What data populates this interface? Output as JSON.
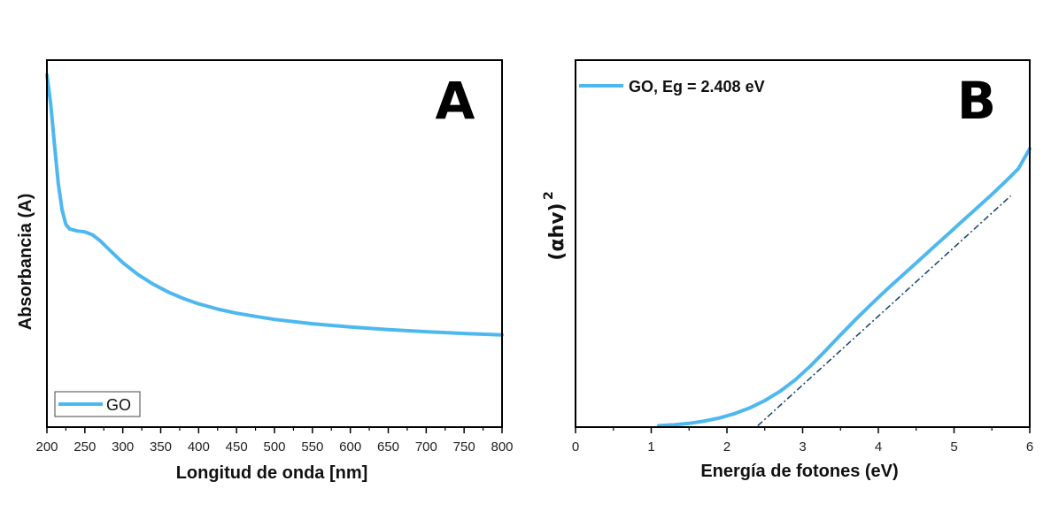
{
  "chart_data": [
    {
      "type": "line",
      "panel_label": "A",
      "xlabel": "Longitud de onda [nm]",
      "ylabel": "Absorbancia (A)",
      "xlim": [
        200,
        800
      ],
      "x_ticks": [
        "200",
        "250",
        "300",
        "350",
        "400",
        "450",
        "500",
        "550",
        "600",
        "650",
        "700",
        "750",
        "800"
      ],
      "y_ticks_shown": false,
      "grid": false,
      "legend_position": "bottom-left",
      "color": "#4db8f0",
      "series": [
        {
          "name": "GO",
          "x": [
            200,
            205,
            210,
            215,
            220,
            225,
            230,
            240,
            250,
            260,
            270,
            280,
            290,
            300,
            320,
            340,
            360,
            380,
            400,
            425,
            450,
            475,
            500,
            550,
            600,
            650,
            700,
            750,
            800
          ],
          "y": [
            1.0,
            0.9,
            0.76,
            0.63,
            0.54,
            0.49,
            0.475,
            0.468,
            0.465,
            0.455,
            0.435,
            0.41,
            0.385,
            0.36,
            0.32,
            0.287,
            0.26,
            0.238,
            0.22,
            0.202,
            0.188,
            0.177,
            0.167,
            0.152,
            0.141,
            0.132,
            0.125,
            0.119,
            0.114
          ]
        }
      ]
    },
    {
      "type": "line",
      "panel_label": "B",
      "xlabel": "Energía de fotones (eV)",
      "ylabel_main": "(αhv)",
      "ylabel_sup": "2",
      "xlim": [
        0,
        6
      ],
      "x_ticks": [
        "0",
        "1",
        "2",
        "3",
        "4",
        "5",
        "6"
      ],
      "y_ticks_shown": false,
      "grid": false,
      "legend_position": "top-left",
      "color": "#4db8f0",
      "fit_color": "#1e4a6e",
      "series": [
        {
          "name": "GO, Eg = 2.408 eV",
          "x": [
            1.1,
            1.3,
            1.5,
            1.7,
            1.9,
            2.1,
            2.3,
            2.5,
            2.7,
            2.9,
            3.1,
            3.3,
            3.5,
            3.7,
            3.9,
            4.1,
            4.3,
            4.5,
            4.7,
            4.9,
            5.1,
            5.3,
            5.5,
            5.7,
            5.85,
            6.0
          ],
          "y": [
            0.0,
            0.003,
            0.008,
            0.016,
            0.027,
            0.042,
            0.062,
            0.088,
            0.12,
            0.16,
            0.208,
            0.262,
            0.318,
            0.372,
            0.424,
            0.474,
            0.522,
            0.57,
            0.618,
            0.666,
            0.714,
            0.762,
            0.81,
            0.86,
            0.9,
            0.97
          ]
        }
      ],
      "fit_line": {
        "x": [
          2.408,
          5.75
        ],
        "y": [
          0.0,
          0.805
        ]
      }
    }
  ]
}
